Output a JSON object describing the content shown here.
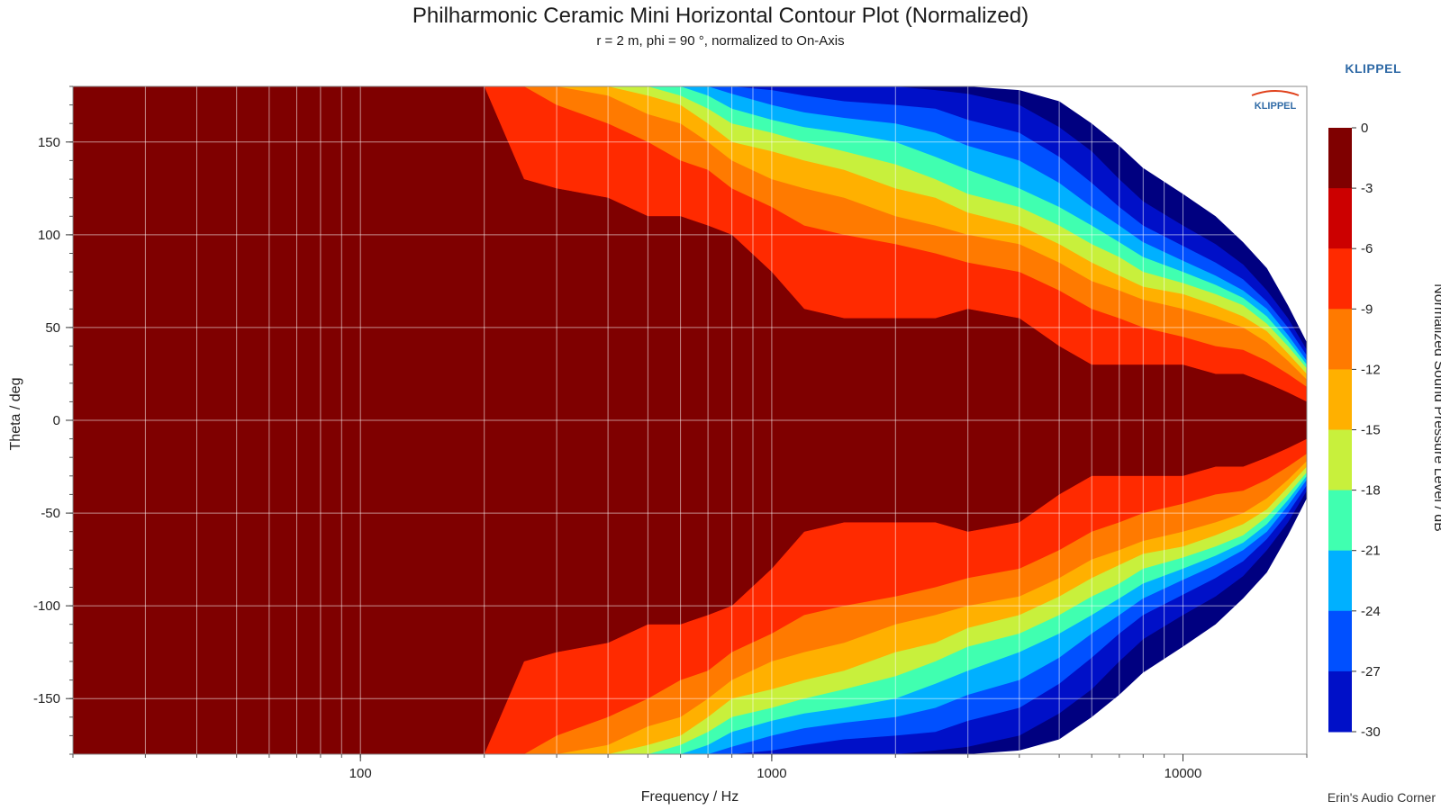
{
  "chart_data": {
    "type": "heatmap",
    "title": "Philharmonic Ceramic Mini Horizontal Contour Plot (Normalized)",
    "subtitle": "r = 2 m, phi = 90 °, normalized to On-Axis",
    "xlabel": "Frequency / Hz",
    "ylabel": "Theta / deg",
    "colorbar_label": "Normalized Sound Pressure Level / dB",
    "x_scale": "log",
    "xlim": [
      20,
      20000
    ],
    "ylim": [
      -180,
      180
    ],
    "x_ticks": [
      100,
      1000,
      10000
    ],
    "x_tick_labels": [
      "100",
      "1000",
      "10000"
    ],
    "y_ticks": [
      150,
      100,
      50,
      0,
      -50,
      -100,
      -150
    ],
    "y_tick_labels": [
      "150",
      "100",
      "50",
      "0",
      "-50",
      "-100",
      "-150"
    ],
    "levels": [
      0,
      -3,
      -6,
      -9,
      -12,
      -15,
      -18,
      -21,
      -24,
      -27,
      -30
    ],
    "level_labels": [
      "0",
      "-3",
      "-6",
      "-9",
      "-12",
      "-15",
      "-18",
      "-21",
      "-24",
      "-27",
      "-30"
    ],
    "level_colors": [
      "#7f0000",
      "#cc0000",
      "#ff2a00",
      "#ff7a00",
      "#ffb000",
      "#c8f03c",
      "#40ffb0",
      "#00b0ff",
      "#0050ff",
      "#0010c8",
      "#000080"
    ],
    "below_range_color": "#ffffff",
    "contour_boundaries": {
      "freq_hz": [
        20,
        200,
        250,
        300,
        400,
        500,
        600,
        700,
        800,
        1000,
        1200,
        1500,
        2000,
        2500,
        3000,
        4000,
        5000,
        6000,
        7000,
        8000,
        10000,
        12000,
        14000,
        16000,
        18000,
        20000
      ],
      "-3dB_deg": [
        180,
        180,
        130,
        125,
        120,
        110,
        110,
        105,
        100,
        80,
        60,
        55,
        55,
        55,
        60,
        55,
        40,
        30,
        30,
        30,
        30,
        25,
        25,
        20,
        15,
        10
      ],
      "-6dB_deg": [
        180,
        180,
        180,
        170,
        160,
        150,
        140,
        135,
        125,
        115,
        105,
        100,
        95,
        90,
        85,
        80,
        70,
        60,
        55,
        50,
        45,
        40,
        38,
        32,
        25,
        18
      ],
      "-9dB_deg": [
        180,
        180,
        180,
        180,
        175,
        165,
        160,
        150,
        140,
        130,
        125,
        120,
        110,
        105,
        100,
        95,
        85,
        75,
        70,
        65,
        60,
        55,
        50,
        42,
        32,
        22
      ],
      "-12dB_deg": [
        180,
        180,
        180,
        180,
        180,
        175,
        170,
        160,
        150,
        145,
        140,
        135,
        125,
        120,
        112,
        105,
        95,
        85,
        78,
        72,
        68,
        62,
        56,
        48,
        36,
        25
      ],
      "-15dB_deg": [
        180,
        180,
        180,
        180,
        180,
        180,
        175,
        168,
        160,
        155,
        150,
        145,
        138,
        130,
        122,
        115,
        105,
        95,
        88,
        80,
        74,
        68,
        62,
        52,
        40,
        28
      ],
      "-18dB_deg": [
        180,
        180,
        180,
        180,
        180,
        180,
        180,
        175,
        168,
        162,
        158,
        155,
        150,
        142,
        135,
        125,
        115,
        105,
        96,
        88,
        80,
        73,
        66,
        56,
        43,
        30
      ],
      "-21dB_deg": [
        180,
        180,
        180,
        180,
        180,
        180,
        180,
        180,
        176,
        170,
        166,
        163,
        160,
        155,
        148,
        140,
        128,
        115,
        105,
        96,
        86,
        78,
        70,
        60,
        46,
        32
      ],
      "-24dB_deg": [
        180,
        180,
        180,
        180,
        180,
        180,
        180,
        180,
        180,
        178,
        175,
        172,
        170,
        168,
        162,
        155,
        142,
        128,
        115,
        105,
        94,
        85,
        76,
        64,
        50,
        35
      ],
      "-27dB_deg": [
        180,
        180,
        180,
        180,
        180,
        180,
        180,
        180,
        180,
        180,
        180,
        180,
        180,
        178,
        176,
        170,
        158,
        145,
        130,
        118,
        105,
        95,
        84,
        70,
        55,
        38
      ],
      "-30dB_deg": [
        180,
        180,
        180,
        180,
        180,
        180,
        180,
        180,
        180,
        180,
        180,
        180,
        180,
        180,
        180,
        178,
        172,
        160,
        148,
        136,
        122,
        110,
        96,
        82,
        62,
        42
      ]
    },
    "grid": true,
    "legend": "colorbar-right"
  },
  "brand_text": "KLIPPEL",
  "logo_text": "KLIPPEL",
  "credit_text": "Erin's Audio Corner"
}
